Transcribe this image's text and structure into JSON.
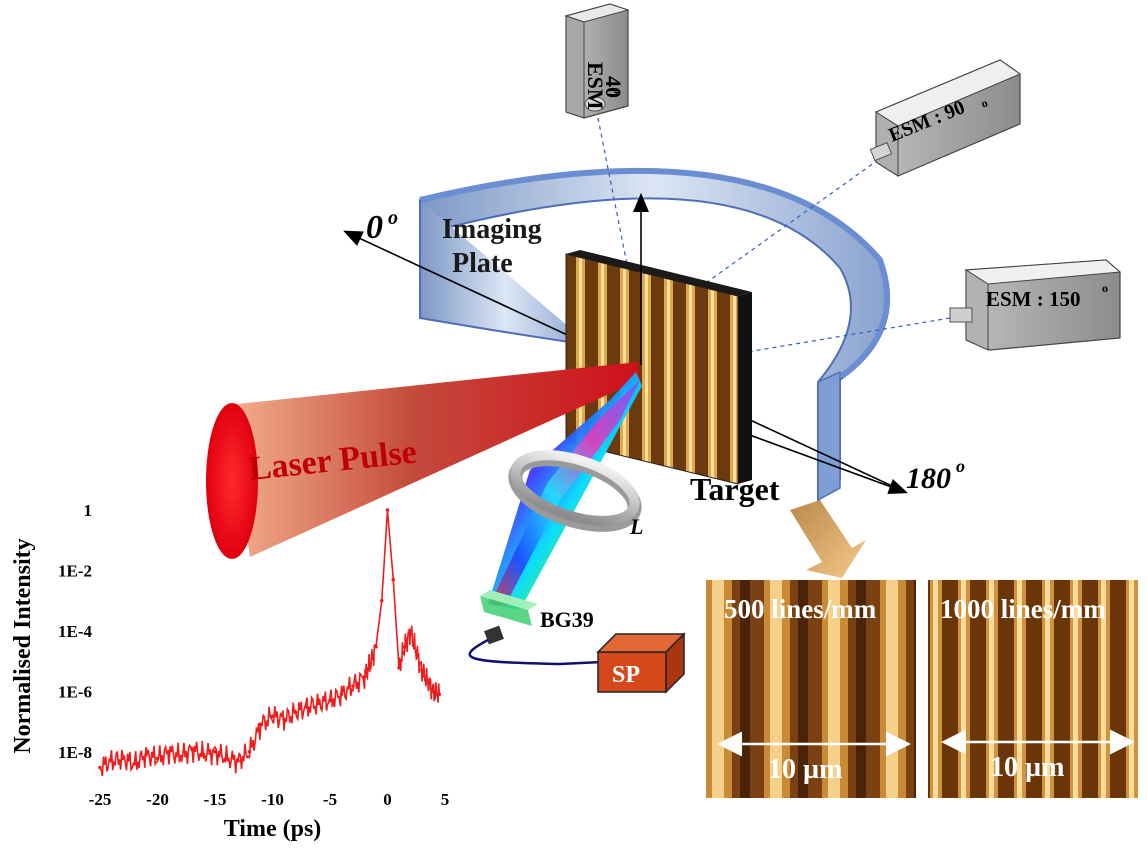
{
  "diagram": {
    "labels": {
      "esm_40": "ESM",
      "esm_40_angle": "40",
      "esm_90": "ESM : 90",
      "esm_150": "ESM : 150",
      "deg": "o",
      "zero_deg": "0",
      "deg_180": "180",
      "imaging_plate_1": "Imaging",
      "imaging_plate_2": "Plate",
      "laser_pulse": "Laser Pulse",
      "target": "Target",
      "lens": "L",
      "filter": "BG39",
      "spectrometer": "SP"
    },
    "insets": {
      "left": {
        "label": "500 lines/mm",
        "scale": "10 µm",
        "lines_per_mm": 500
      },
      "right": {
        "label": "1000 lines/mm",
        "scale": "10 µm",
        "lines_per_mm": 1000
      }
    },
    "colors": {
      "laser": "#cc1010",
      "plate_blue": "#9fb7dc",
      "target_brown": "#8a5418",
      "spectrometer": "#d84a1c",
      "signal_red": "#ee1c1c"
    }
  },
  "chart_data": {
    "type": "line",
    "title": "",
    "xlabel": "Time (ps)",
    "ylabel": "Normalised Intensity",
    "xlim": [
      -25,
      5
    ],
    "ylim_log10": [
      -9,
      0
    ],
    "yscale": "log",
    "x_ticks": [
      -25,
      -20,
      -15,
      -10,
      -5,
      0,
      5
    ],
    "x_tick_labels": [
      "-25",
      "-20",
      "-15",
      "-10",
      "-5",
      "0",
      "5"
    ],
    "y_ticks": [
      1,
      0.01,
      0.0001,
      1e-06,
      1e-08
    ],
    "y_tick_labels": [
      "1",
      "1E-2",
      "1E-4",
      "1E-6",
      "1E-8"
    ],
    "series": [
      {
        "name": "",
        "color": "#ee1c1c",
        "x": [
          -25,
          -24,
          -23,
          -22,
          -21,
          -20,
          -19,
          -18,
          -17,
          -16,
          -15,
          -14,
          -13,
          -12,
          -11,
          -10,
          -9,
          -8,
          -7,
          -6,
          -5,
          -4,
          -3,
          -2,
          -1.5,
          -1,
          -0.5,
          0,
          0.5,
          1,
          1.5,
          2,
          2.5,
          3,
          3.5,
          4,
          4.5
        ],
        "y": [
          3e-09,
          5e-09,
          6e-09,
          4e-09,
          8e-09,
          6e-09,
          1e-08,
          7e-09,
          1.2e-08,
          8e-09,
          1e-08,
          6e-09,
          5e-09,
          1e-08,
          8e-08,
          1.5e-07,
          1.2e-07,
          2e-07,
          3e-07,
          4e-07,
          5e-07,
          8e-07,
          1.5e-06,
          3e-06,
          8e-06,
          3e-05,
          0.001,
          1,
          0.005,
          6e-06,
          3e-05,
          0.0001,
          2e-05,
          5e-06,
          2e-06,
          1e-06,
          8e-07
        ]
      }
    ]
  }
}
